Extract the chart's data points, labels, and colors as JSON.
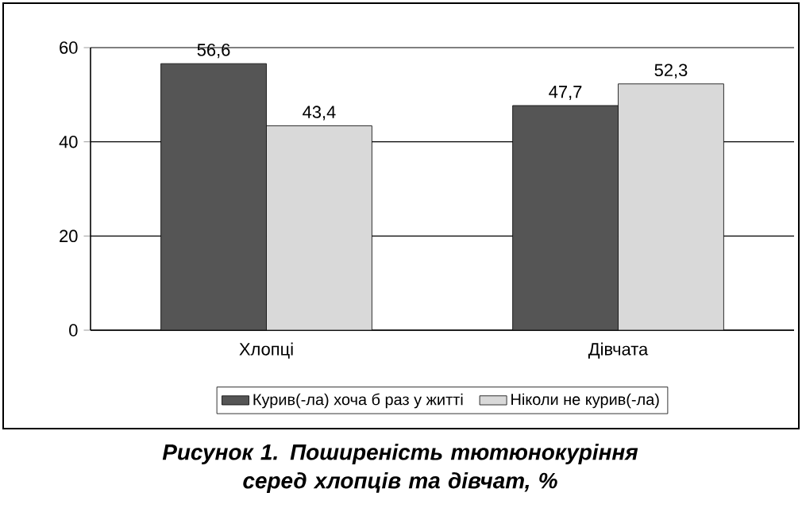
{
  "chart_data": {
    "type": "bar",
    "title": "Рисунок 1. Поширеність тютюнокуріння серед хлопців та дівчат, %",
    "categories": [
      "Хлопці",
      "Дівчата"
    ],
    "series": [
      {
        "name": "Курив(-ла) хоча б раз у житті",
        "color": "#555555",
        "values": [
          56.6,
          47.7
        ],
        "value_labels": [
          "56,6",
          "47,7"
        ]
      },
      {
        "name": "Ніколи не курив(-ла)",
        "color": "#d9d9d9",
        "values": [
          43.4,
          52.3
        ],
        "value_labels": [
          "43,4",
          "52,3"
        ]
      }
    ],
    "ylim": [
      0,
      60
    ],
    "yticks": [
      0,
      20,
      40,
      60
    ],
    "grid": "y",
    "legend": "bottom"
  }
}
